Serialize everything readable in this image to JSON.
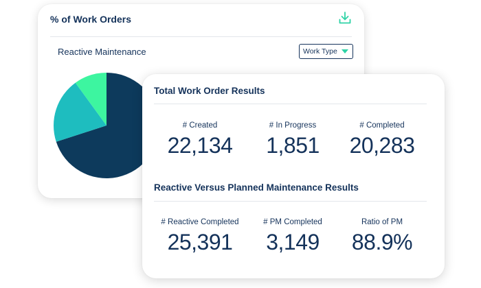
{
  "back_card": {
    "title": "% of Work Orders",
    "subtitle": "Reactive Maintenance",
    "filter": {
      "selected": "Work Type"
    },
    "icon": "download-icon",
    "pie_colors": [
      "#0d3a5c",
      "#1ebdbf",
      "#3df5a0"
    ]
  },
  "front_card": {
    "section1": {
      "title": "Total Work Order Results",
      "stats": [
        {
          "label": "# Created",
          "value": "22,134"
        },
        {
          "label": "# In Progress",
          "value": "1,851"
        },
        {
          "label": "# Completed",
          "value": "20,283"
        }
      ]
    },
    "section2": {
      "title": "Reactive Versus Planned Maintenance Results",
      "stats": [
        {
          "label": "# Reactive Completed",
          "value": "25,391"
        },
        {
          "label": "# PM Completed",
          "value": "3,149"
        },
        {
          "label": "Ratio of PM",
          "value": "88.9%"
        }
      ]
    }
  },
  "chart_data": {
    "type": "pie",
    "title": "",
    "slices": [
      {
        "value": 70,
        "color": "#0d3a5c"
      },
      {
        "value": 20,
        "color": "#1ebdbf"
      },
      {
        "value": 10,
        "color": "#3df5a0"
      }
    ]
  },
  "colors": {
    "text_primary": "#14325a",
    "accent": "#2ed3a6",
    "divider": "#e2e6eb"
  }
}
